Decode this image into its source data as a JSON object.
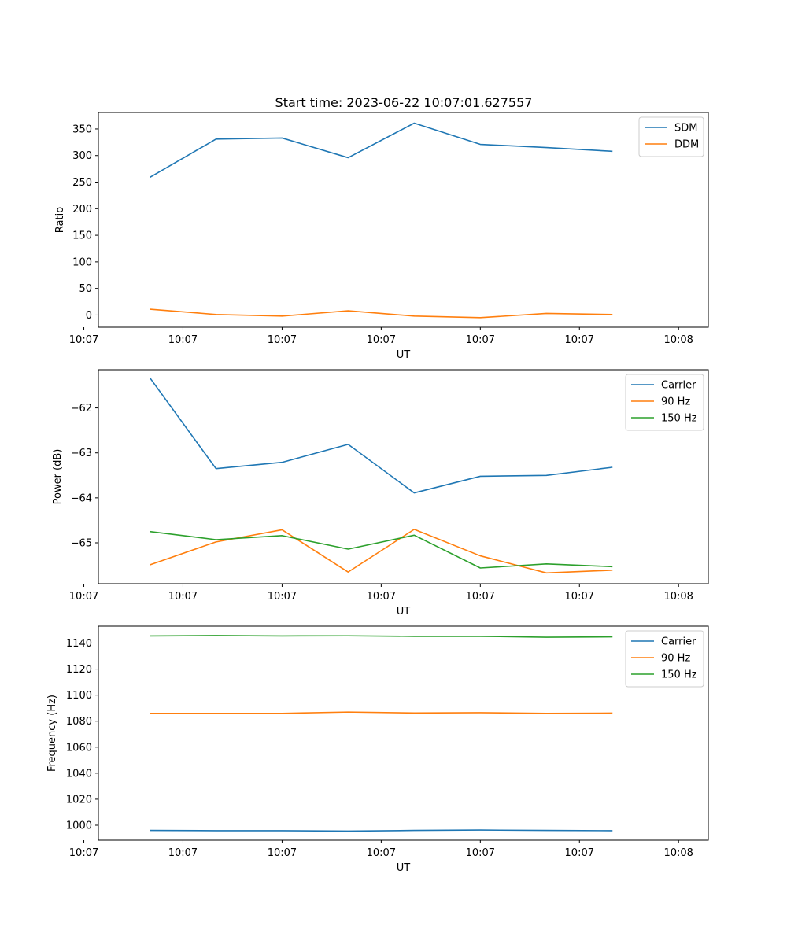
{
  "figure": {
    "title": "Start time: 2023-06-22 10:07:01.627557"
  },
  "chart_data": [
    {
      "type": "line",
      "xlabel": "UT",
      "ylabel": "Ratio",
      "x": [
        1,
        2,
        3,
        4,
        5,
        6,
        7,
        8
      ],
      "xlim": [
        0.22,
        9.45
      ],
      "xticks": [
        {
          "pos": 0.0,
          "label": "10:07"
        },
        {
          "pos": 1.5,
          "label": "10:07"
        },
        {
          "pos": 3.0,
          "label": "10:07"
        },
        {
          "pos": 4.5,
          "label": "10:07"
        },
        {
          "pos": 6.0,
          "label": "10:07"
        },
        {
          "pos": 7.5,
          "label": "10:07"
        },
        {
          "pos": 9.0,
          "label": "10:08"
        }
      ],
      "xticks_note": "",
      "ylim": [
        -23,
        381
      ],
      "yticks": [
        0,
        50,
        100,
        150,
        200,
        250,
        300,
        350
      ],
      "legend_position": "top-right",
      "series": [
        {
          "name": "SDM",
          "color": "#1f77b4",
          "values": [
            259,
            331,
            333,
            296,
            361,
            321,
            315,
            308
          ]
        },
        {
          "name": "DDM",
          "color": "#ff7f0e",
          "values": [
            11,
            1,
            -2,
            8,
            -2,
            -5,
            3,
            1
          ]
        }
      ]
    },
    {
      "type": "line",
      "xlabel": "UT",
      "ylabel": "Power (dB)",
      "x": [
        1,
        2,
        3,
        4,
        5,
        6,
        7,
        8
      ],
      "xlim": [
        0.22,
        9.45
      ],
      "xticks": [
        {
          "pos": 0.0,
          "label": "10:07"
        },
        {
          "pos": 1.5,
          "label": "10:07"
        },
        {
          "pos": 3.0,
          "label": "10:07"
        },
        {
          "pos": 4.5,
          "label": "10:07"
        },
        {
          "pos": 6.0,
          "label": "10:07"
        },
        {
          "pos": 7.5,
          "label": "10:07"
        },
        {
          "pos": 9.0,
          "label": "10:08"
        }
      ],
      "ylim": [
        -65.91,
        -61.15
      ],
      "yticks": [
        -65,
        -64,
        -63,
        -62
      ],
      "ytick_labels": [
        "−65",
        "−64",
        "−63",
        "−62"
      ],
      "legend_position": "top-right",
      "series": [
        {
          "name": "Carrier",
          "color": "#1f77b4",
          "values": [
            -61.33,
            -63.35,
            -63.21,
            -62.81,
            -63.89,
            -63.52,
            -63.5,
            -63.32
          ]
        },
        {
          "name": "90 Hz",
          "color": "#ff7f0e",
          "values": [
            -65.49,
            -64.98,
            -64.71,
            -65.65,
            -64.7,
            -65.29,
            -65.67,
            -65.61
          ]
        },
        {
          "name": "150 Hz",
          "color": "#2ca02c",
          "values": [
            -64.75,
            -64.93,
            -64.84,
            -65.14,
            -64.83,
            -65.56,
            -65.47,
            -65.53
          ]
        }
      ]
    },
    {
      "type": "line",
      "xlabel": "UT",
      "ylabel": "Frequency (Hz)",
      "x": [
        1,
        2,
        3,
        4,
        5,
        6,
        7,
        8
      ],
      "xlim": [
        0.22,
        9.45
      ],
      "xticks": [
        {
          "pos": 0.0,
          "label": "10:07"
        },
        {
          "pos": 1.5,
          "label": "10:07"
        },
        {
          "pos": 3.0,
          "label": "10:07"
        },
        {
          "pos": 4.5,
          "label": "10:07"
        },
        {
          "pos": 6.0,
          "label": "10:07"
        },
        {
          "pos": 7.5,
          "label": "10:07"
        },
        {
          "pos": 9.0,
          "label": "10:08"
        }
      ],
      "ylim": [
        988.5,
        1153
      ],
      "yticks": [
        1000,
        1020,
        1040,
        1060,
        1080,
        1100,
        1120,
        1140
      ],
      "legend_position": "top-right",
      "series": [
        {
          "name": "Carrier",
          "color": "#1f77b4",
          "values": [
            996,
            995.8,
            995.8,
            995.5,
            996,
            996.3,
            996,
            995.8
          ]
        },
        {
          "name": "90 Hz",
          "color": "#ff7f0e",
          "values": [
            1086,
            1086,
            1086,
            1087,
            1086.3,
            1086.5,
            1086,
            1086.2
          ]
        },
        {
          "name": "150 Hz",
          "color": "#2ca02c",
          "values": [
            1145.5,
            1145.8,
            1145.5,
            1145.6,
            1145.2,
            1145.2,
            1144.5,
            1144.8
          ]
        }
      ]
    }
  ]
}
